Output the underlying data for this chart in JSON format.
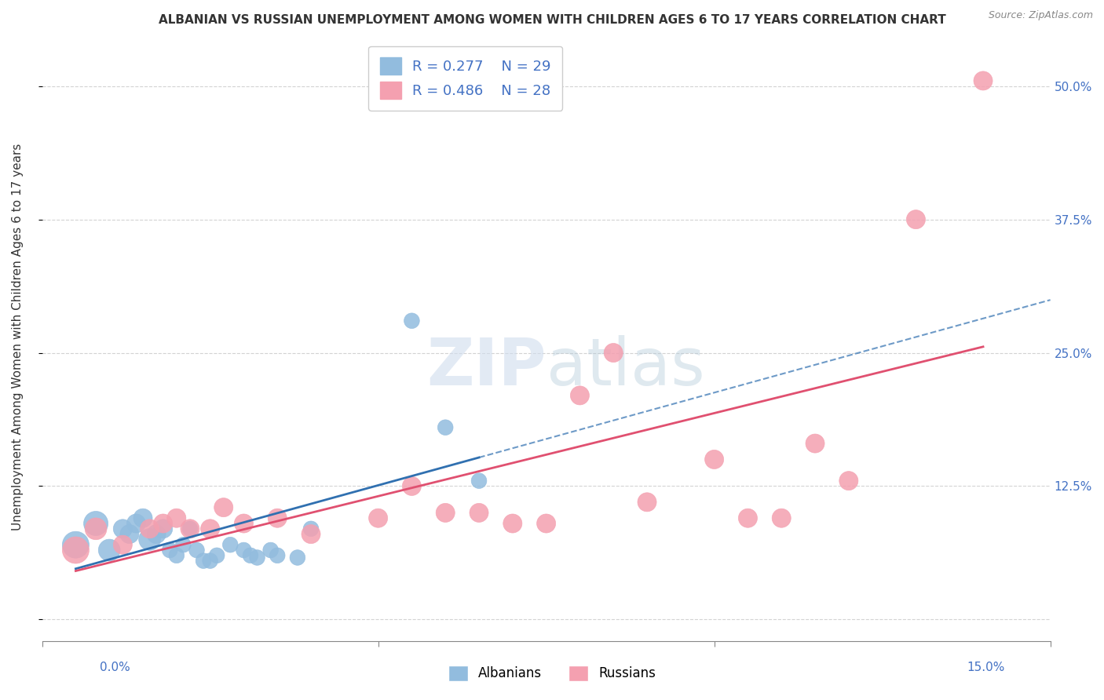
{
  "title": "ALBANIAN VS RUSSIAN UNEMPLOYMENT AMONG WOMEN WITH CHILDREN AGES 6 TO 17 YEARS CORRELATION CHART",
  "source": "Source: ZipAtlas.com",
  "ylabel": "Unemployment Among Women with Children Ages 6 to 17 years",
  "ytick_values": [
    0.0,
    0.125,
    0.25,
    0.375,
    0.5
  ],
  "ytick_labels": [
    "",
    "12.5%",
    "25.0%",
    "37.5%",
    "50.0%"
  ],
  "xlim": [
    0.0,
    0.15
  ],
  "ylim": [
    -0.02,
    0.55
  ],
  "legend_R_albanian": "0.277",
  "legend_N_albanian": "29",
  "legend_R_russian": "0.486",
  "legend_N_russian": "28",
  "albanian_color": "#92BCDE",
  "russian_color": "#F4A0B0",
  "albanian_line_color": "#3070B0",
  "russian_line_color": "#E05070",
  "albanian_x": [
    0.005,
    0.008,
    0.01,
    0.012,
    0.013,
    0.014,
    0.015,
    0.016,
    0.017,
    0.018,
    0.019,
    0.02,
    0.021,
    0.022,
    0.023,
    0.024,
    0.025,
    0.026,
    0.028,
    0.03,
    0.031,
    0.032,
    0.034,
    0.035,
    0.038,
    0.04,
    0.055,
    0.06,
    0.065
  ],
  "albanian_y": [
    0.07,
    0.09,
    0.065,
    0.085,
    0.08,
    0.09,
    0.095,
    0.075,
    0.08,
    0.085,
    0.065,
    0.06,
    0.07,
    0.085,
    0.065,
    0.055,
    0.055,
    0.06,
    0.07,
    0.065,
    0.06,
    0.058,
    0.065,
    0.06,
    0.058,
    0.085,
    0.28,
    0.18,
    0.13
  ],
  "albanian_size": [
    600,
    500,
    400,
    300,
    300,
    300,
    300,
    400,
    300,
    300,
    200,
    200,
    200,
    200,
    200,
    200,
    200,
    200,
    200,
    200,
    200,
    200,
    200,
    200,
    200,
    200,
    200,
    200,
    200
  ],
  "russian_x": [
    0.005,
    0.008,
    0.012,
    0.016,
    0.018,
    0.02,
    0.022,
    0.025,
    0.027,
    0.03,
    0.035,
    0.04,
    0.05,
    0.055,
    0.06,
    0.065,
    0.07,
    0.075,
    0.08,
    0.085,
    0.09,
    0.1,
    0.105,
    0.11,
    0.115,
    0.12,
    0.13,
    0.14
  ],
  "russian_y": [
    0.065,
    0.085,
    0.07,
    0.085,
    0.09,
    0.095,
    0.085,
    0.085,
    0.105,
    0.09,
    0.095,
    0.08,
    0.095,
    0.125,
    0.1,
    0.1,
    0.09,
    0.09,
    0.21,
    0.25,
    0.11,
    0.15,
    0.095,
    0.095,
    0.165,
    0.13,
    0.375,
    0.505
  ],
  "russian_size": [
    600,
    400,
    300,
    300,
    300,
    300,
    300,
    300,
    300,
    300,
    300,
    300,
    300,
    300,
    300,
    300,
    300,
    300,
    300,
    300,
    300,
    300,
    300,
    300,
    300,
    300,
    300,
    300
  ]
}
